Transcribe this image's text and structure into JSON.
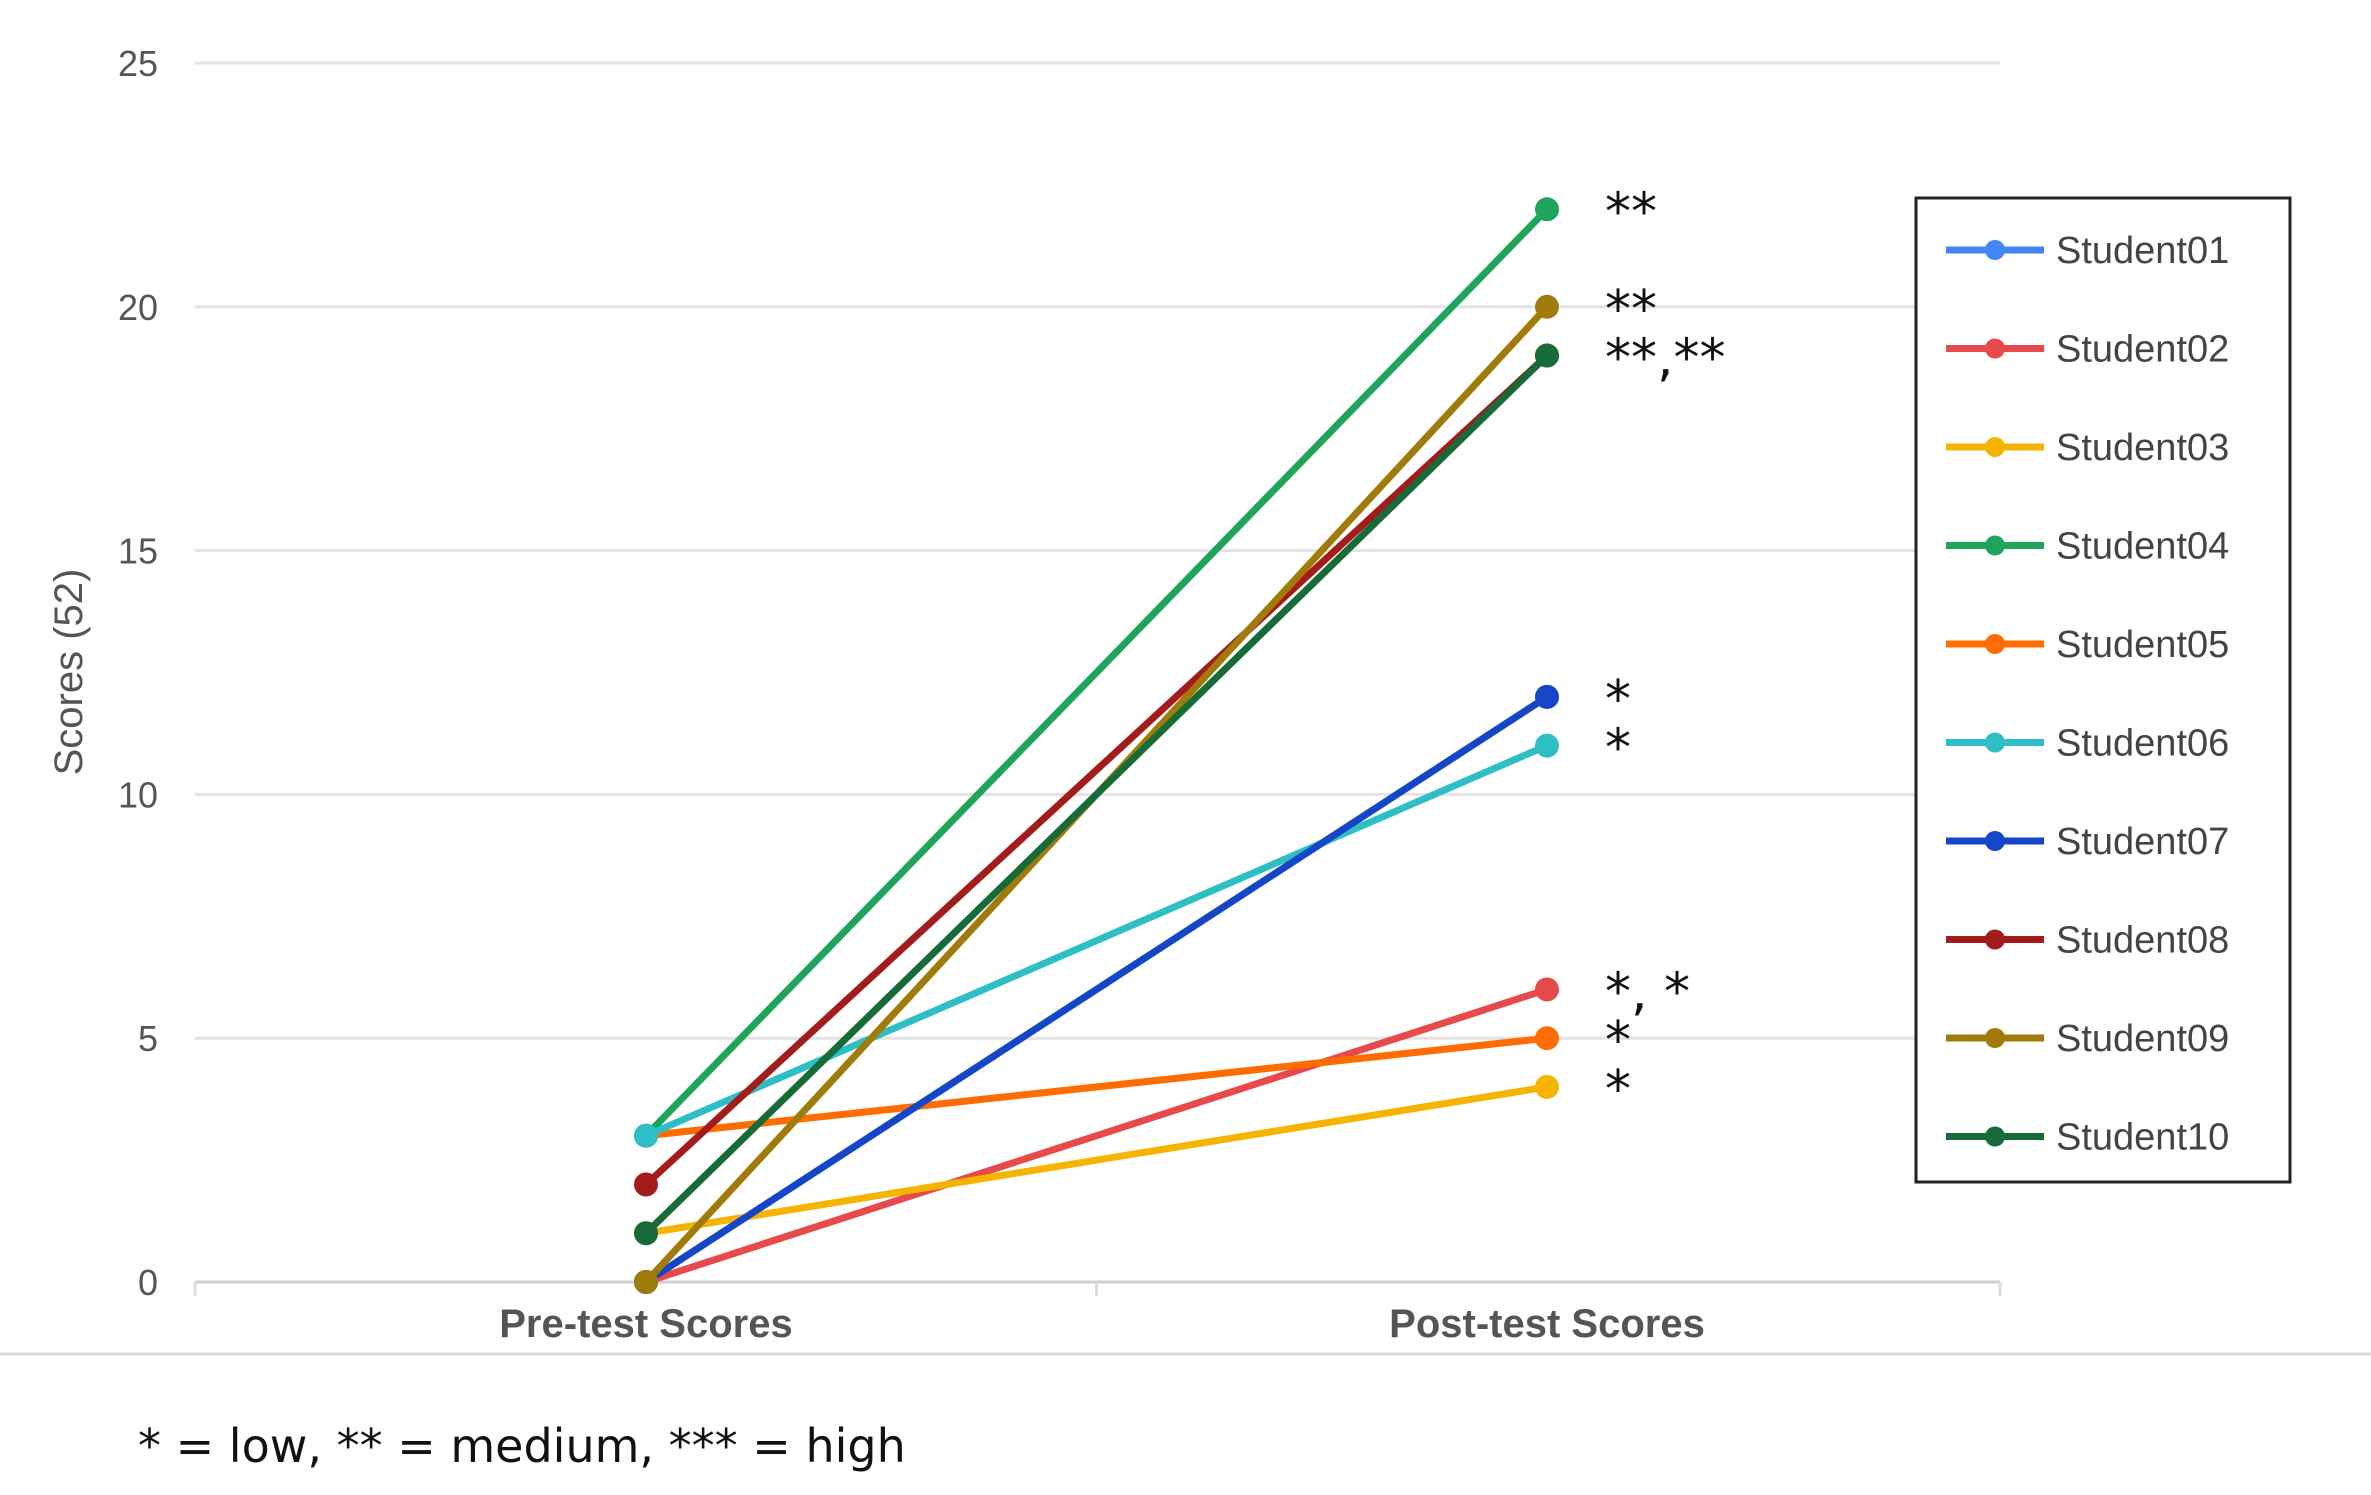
{
  "chart_data": {
    "type": "line",
    "title": "",
    "xlabel": "",
    "ylabel": "Scores (52)",
    "categories": [
      "Pre-test Scores",
      "Post-test Scores"
    ],
    "ylim": [
      0,
      25
    ],
    "yticks": [
      0,
      5,
      10,
      15,
      20,
      25
    ],
    "grid": true,
    "legend_position": "right",
    "series": [
      {
        "name": "Student01",
        "values": [
          0,
          12
        ],
        "color": "#4285F4"
      },
      {
        "name": "Student02",
        "values": [
          0,
          6
        ],
        "color": "#E64A4A"
      },
      {
        "name": "Student03",
        "values": [
          1,
          4
        ],
        "color": "#F4B400"
      },
      {
        "name": "Student04",
        "values": [
          3,
          22
        ],
        "color": "#1FA45B"
      },
      {
        "name": "Student05",
        "values": [
          3,
          5
        ],
        "color": "#FF6D00"
      },
      {
        "name": "Student06",
        "values": [
          3,
          11
        ],
        "color": "#2EBFC6"
      },
      {
        "name": "Student07",
        "values": [
          0,
          12
        ],
        "color": "#1646C8"
      },
      {
        "name": "Student08",
        "values": [
          2,
          19
        ],
        "color": "#A41B1B"
      },
      {
        "name": "Student09",
        "values": [
          0,
          20
        ],
        "color": "#A07B0A"
      },
      {
        "name": "Student10",
        "values": [
          1,
          19
        ],
        "color": "#176B38"
      }
    ],
    "annotations": [
      {
        "text": "**",
        "y": 22
      },
      {
        "text": "**",
        "y": 20
      },
      {
        "text": "**,**",
        "y": 19
      },
      {
        "text": "*",
        "y": 12
      },
      {
        "text": "*",
        "y": 11
      },
      {
        "text": "*, *",
        "y": 6
      },
      {
        "text": "*",
        "y": 5
      },
      {
        "text": "*",
        "y": 4
      }
    ],
    "footnote": "* = low, ** = medium, *** = high"
  }
}
